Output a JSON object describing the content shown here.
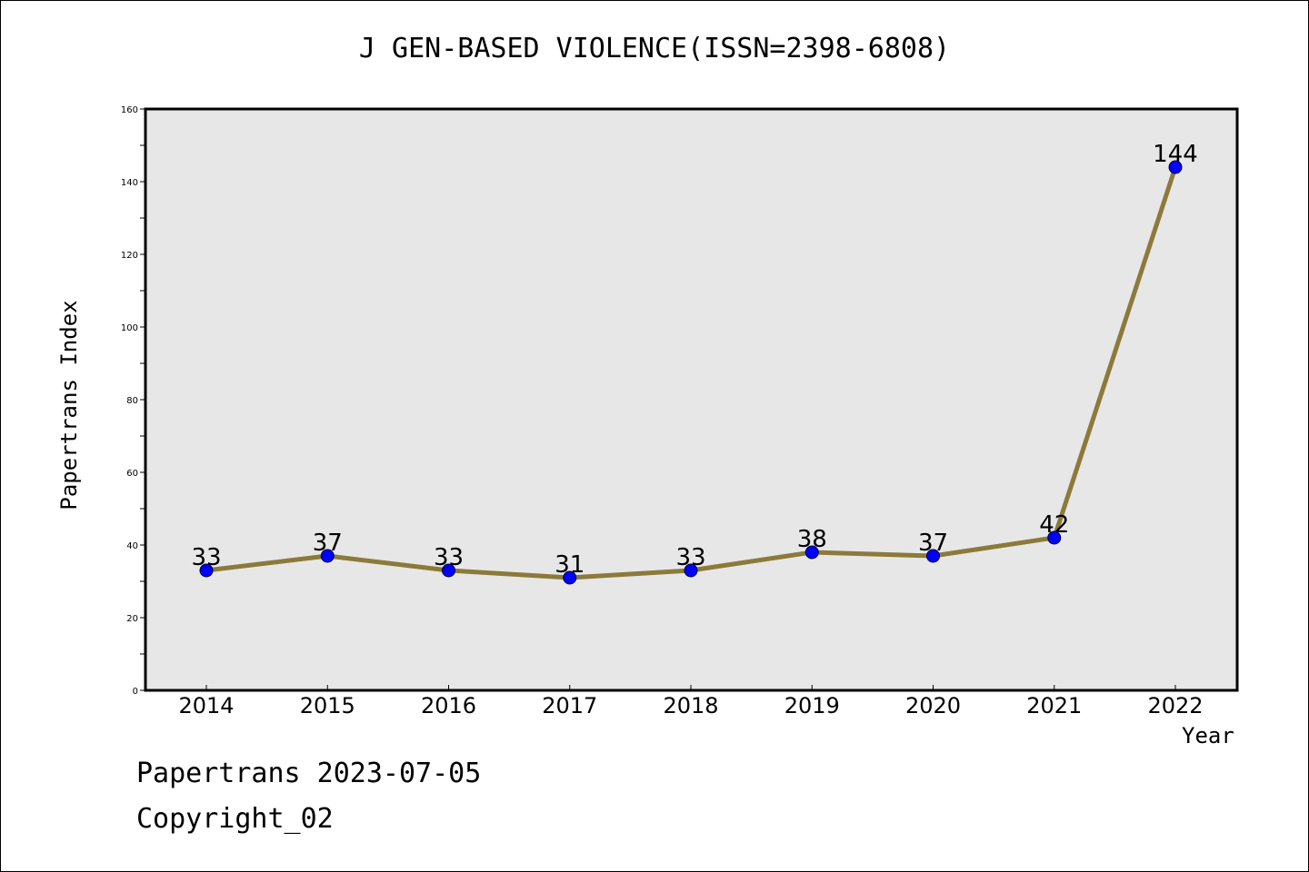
{
  "title": "J GEN-BASED VIOLENCE(ISSN=2398-6808)",
  "footer": {
    "line1": "Papertrans 2023-07-05",
    "line2": "Copyright_02"
  },
  "colors": {
    "line": "#8c7a3a",
    "marker": "#0000ff",
    "plot_bg": "#e7e7e7"
  },
  "chart_data": {
    "type": "line",
    "title": "J GEN-BASED VIOLENCE(ISSN=2398-6808)",
    "xlabel": "Year",
    "ylabel": "Papertrans Index",
    "categories": [
      "2014",
      "2015",
      "2016",
      "2017",
      "2018",
      "2019",
      "2020",
      "2021",
      "2022"
    ],
    "series": [
      {
        "values": [
          33,
          37,
          33,
          31,
          33,
          38,
          37,
          42,
          144
        ]
      }
    ],
    "ylim": [
      0,
      160
    ],
    "yticks": [
      0,
      20,
      40,
      60,
      80,
      100,
      120,
      140,
      160
    ],
    "grid": false,
    "data_labels": true
  }
}
